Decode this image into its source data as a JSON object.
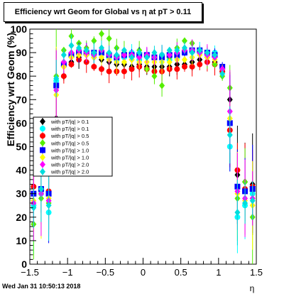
{
  "chart_data": {
    "type": "scatter",
    "title": "Efficiency wrt Geom for Global vs   η at pT > 0.11",
    "xlabel": "η",
    "ylabel": "Efficiency wrt Geom (%)",
    "xlim": [
      -1.5,
      1.5
    ],
    "ylim": [
      0,
      100
    ],
    "x_ticks": [
      "−1.5",
      "−1",
      "−0.5",
      "0",
      "0.5",
      "1",
      "1.5"
    ],
    "y_ticks": [
      "0",
      "10",
      "20",
      "30",
      "40",
      "50",
      "60",
      "70",
      "80",
      "90",
      "100"
    ],
    "legend_position": "center-left",
    "series": [
      {
        "name": "with pT/|q| > 0.1",
        "color": "#000000",
        "marker": "diamond",
        "x": [
          -1.45,
          -1.35,
          -1.25,
          -1.15,
          -1.05,
          -0.95,
          -0.85,
          -0.75,
          -0.65,
          -0.55,
          -0.45,
          -0.35,
          -0.25,
          -0.15,
          -0.05,
          0.05,
          0.15,
          0.25,
          0.35,
          0.45,
          0.55,
          0.65,
          0.75,
          0.85,
          0.95,
          1.05,
          1.15,
          1.25,
          1.35,
          1.45
        ],
        "y": [
          30,
          31,
          30,
          62,
          80,
          86,
          88,
          89,
          88,
          87,
          86,
          85,
          85,
          84,
          85,
          84,
          84,
          84,
          84,
          85,
          85,
          86,
          87,
          88,
          86,
          82,
          70,
          38,
          35,
          34
        ]
      },
      {
        "name": "with pT/|q| > 0.1",
        "color": "#00ffff",
        "marker": "circle",
        "x": [
          -1.45,
          -1.35,
          -1.25,
          -1.15,
          -1.05,
          -0.95,
          -0.85,
          -0.75,
          -0.65,
          -0.55,
          -0.45,
          -0.35,
          -0.25,
          -0.15,
          -0.05,
          0.05,
          0.15,
          0.25,
          0.35,
          0.45,
          0.55,
          0.65,
          0.75,
          0.85,
          0.95,
          1.05,
          1.15,
          1.25,
          1.35,
          1.45
        ],
        "y": [
          25,
          30,
          22,
          78,
          85,
          89,
          91,
          90,
          89,
          90,
          88,
          87,
          88,
          90,
          87,
          89,
          88,
          89,
          87,
          88,
          90,
          91,
          90,
          89,
          90,
          82,
          50,
          20,
          25,
          30
        ]
      },
      {
        "name": "with pT/|q| > 0.5",
        "color": "#ff0000",
        "marker": "circle",
        "x": [
          -1.45,
          -1.35,
          -1.25,
          -1.15,
          -1.05,
          -0.95,
          -0.85,
          -0.75,
          -0.65,
          -0.55,
          -0.45,
          -0.35,
          -0.25,
          -0.15,
          -0.05,
          0.05,
          0.15,
          0.25,
          0.35,
          0.45,
          0.55,
          0.65,
          0.75,
          0.85,
          0.95,
          1.05,
          1.15,
          1.25,
          1.35,
          1.45
        ],
        "y": [
          33,
          32,
          31,
          60,
          80,
          85,
          87,
          86,
          84,
          83,
          82,
          82,
          82,
          83,
          84,
          83,
          82,
          82,
          83,
          83,
          84,
          84,
          85,
          86,
          85,
          82,
          57,
          40,
          32,
          33
        ]
      },
      {
        "name": "with pT/|q| > 0.5",
        "color": "#55ee00",
        "marker": "diamond",
        "x": [
          -1.45,
          -1.35,
          -1.25,
          -1.15,
          -1.05,
          -0.95,
          -0.85,
          -0.75,
          -0.65,
          -0.55,
          -0.45,
          -0.35,
          -0.25,
          -0.15,
          -0.05,
          0.05,
          0.15,
          0.25,
          0.35,
          0.45,
          0.55,
          0.65,
          0.75,
          0.85,
          0.95,
          1.05,
          1.15,
          1.25,
          1.35,
          1.45
        ],
        "y": [
          17,
          28,
          26,
          80,
          91,
          97,
          94,
          92,
          95,
          98,
          96,
          92,
          90,
          87,
          91,
          83,
          80,
          76,
          88,
          92,
          95,
          94,
          90,
          88,
          85,
          80,
          75,
          28,
          35,
          20
        ]
      },
      {
        "name": "with pT/|q| > 1.0",
        "color": "#0000ff",
        "marker": "square",
        "x": [
          -1.45,
          -1.35,
          -1.25,
          -1.15,
          -1.05,
          -0.95,
          -0.85,
          -0.75,
          -0.65,
          -0.55,
          -0.45,
          -0.35,
          -0.25,
          -0.15,
          -0.05,
          0.05,
          0.15,
          0.25,
          0.35,
          0.45,
          0.55,
          0.65,
          0.75,
          0.85,
          0.95,
          1.05,
          1.15,
          1.25,
          1.35,
          1.45
        ],
        "y": [
          30,
          32,
          30,
          76,
          85,
          89,
          90,
          90,
          90,
          90,
          89,
          88,
          89,
          89,
          89,
          89,
          88,
          88,
          89,
          89,
          90,
          91,
          91,
          90,
          89,
          84,
          60,
          33,
          31,
          32
        ]
      },
      {
        "name": "with pT/|q| > 1.0",
        "color": "#ffff00",
        "marker": "diamond",
        "x": [
          -1.45,
          -1.35,
          -1.25,
          -1.15,
          -1.05,
          -0.95,
          -0.85,
          -0.75,
          -0.65,
          -0.55,
          -0.45,
          -0.35,
          -0.25,
          -0.15,
          -0.05,
          0.05,
          0.15,
          0.25,
          0.35,
          0.45,
          0.55,
          0.65,
          0.75,
          0.85,
          0.95,
          1.05,
          1.15,
          1.25,
          1.35,
          1.45
        ],
        "y": [
          27,
          30,
          28,
          72,
          84,
          88,
          89,
          89,
          88,
          88,
          87,
          86,
          86,
          87,
          86,
          86,
          86,
          86,
          86,
          87,
          87,
          88,
          89,
          88,
          87,
          83,
          62,
          30,
          27,
          25
        ]
      },
      {
        "name": "with pT/|q| > 2.0",
        "color": "#ff00ff",
        "marker": "diamond",
        "x": [
          -1.45,
          -1.35,
          -1.25,
          -1.15,
          -1.05,
          -0.95,
          -0.85,
          -0.75,
          -0.65,
          -0.55,
          -0.45,
          -0.35,
          -0.25,
          -0.15,
          -0.05,
          0.05,
          0.15,
          0.25,
          0.35,
          0.45,
          0.55,
          0.65,
          0.75,
          0.85,
          0.95,
          1.05,
          1.15,
          1.25,
          1.35,
          1.45
        ],
        "y": [
          26,
          30,
          27,
          74,
          86,
          90,
          91,
          90,
          89,
          91,
          89,
          88,
          89,
          89,
          88,
          89,
          88,
          89,
          89,
          90,
          91,
          91,
          90,
          89,
          88,
          83,
          65,
          31,
          28,
          28
        ]
      },
      {
        "name": "with pT/|q| > 2.0",
        "color": "#00dddd",
        "marker": "diamond",
        "x": [
          -1.45,
          -1.35,
          -1.25,
          -1.15,
          -1.05,
          -0.95,
          -0.85,
          -0.75,
          -0.65,
          -0.55,
          -0.45,
          -0.35,
          -0.25,
          -0.15,
          -0.05,
          0.05,
          0.15,
          0.25,
          0.35,
          0.45,
          0.55,
          0.65,
          0.75,
          0.85,
          0.95,
          1.05,
          1.15,
          1.25,
          1.35,
          1.45
        ],
        "y": [
          24,
          32,
          25,
          79,
          89,
          93,
          92,
          91,
          90,
          92,
          90,
          89,
          91,
          88,
          90,
          88,
          90,
          89,
          91,
          91,
          92,
          90,
          91,
          90,
          89,
          81,
          55,
          22,
          26,
          27
        ]
      }
    ]
  },
  "footer": {
    "timestamp": "Wed Jan 31 10:50:13 2018"
  }
}
